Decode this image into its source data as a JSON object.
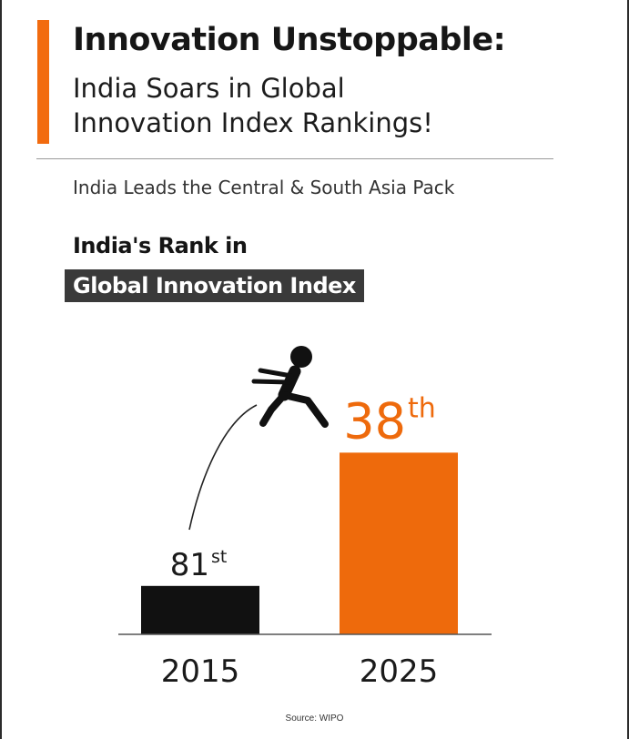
{
  "header": {
    "title": "Innovation Unstoppable:",
    "subtitle_line1": "India Soars in Global",
    "subtitle_line2": "Innovation Index Rankings!",
    "tagline": "India Leads the Central & South Asia Pack"
  },
  "chart_label": {
    "line1": "India's Rank in",
    "line2": "Global Innovation Index"
  },
  "colors": {
    "accent": "#f26b0f",
    "bar_2015": "#111111",
    "bar_2025": "#ee6a0c",
    "label_box": "#3a3a3a"
  },
  "icons": {
    "jumper": "jumping-person-icon",
    "arc": "jump-arc"
  },
  "chart_data": {
    "type": "bar",
    "categories": [
      "2015",
      "2025"
    ],
    "values": [
      81,
      38
    ],
    "value_labels": [
      {
        "number": "81",
        "suffix": "st"
      },
      {
        "number": "38",
        "suffix": "th"
      }
    ],
    "title": "India's Rank in Global Innovation Index",
    "xlabel": "",
    "ylabel": "",
    "grid": false,
    "legend": "none"
  },
  "source": "Source: WIPO"
}
